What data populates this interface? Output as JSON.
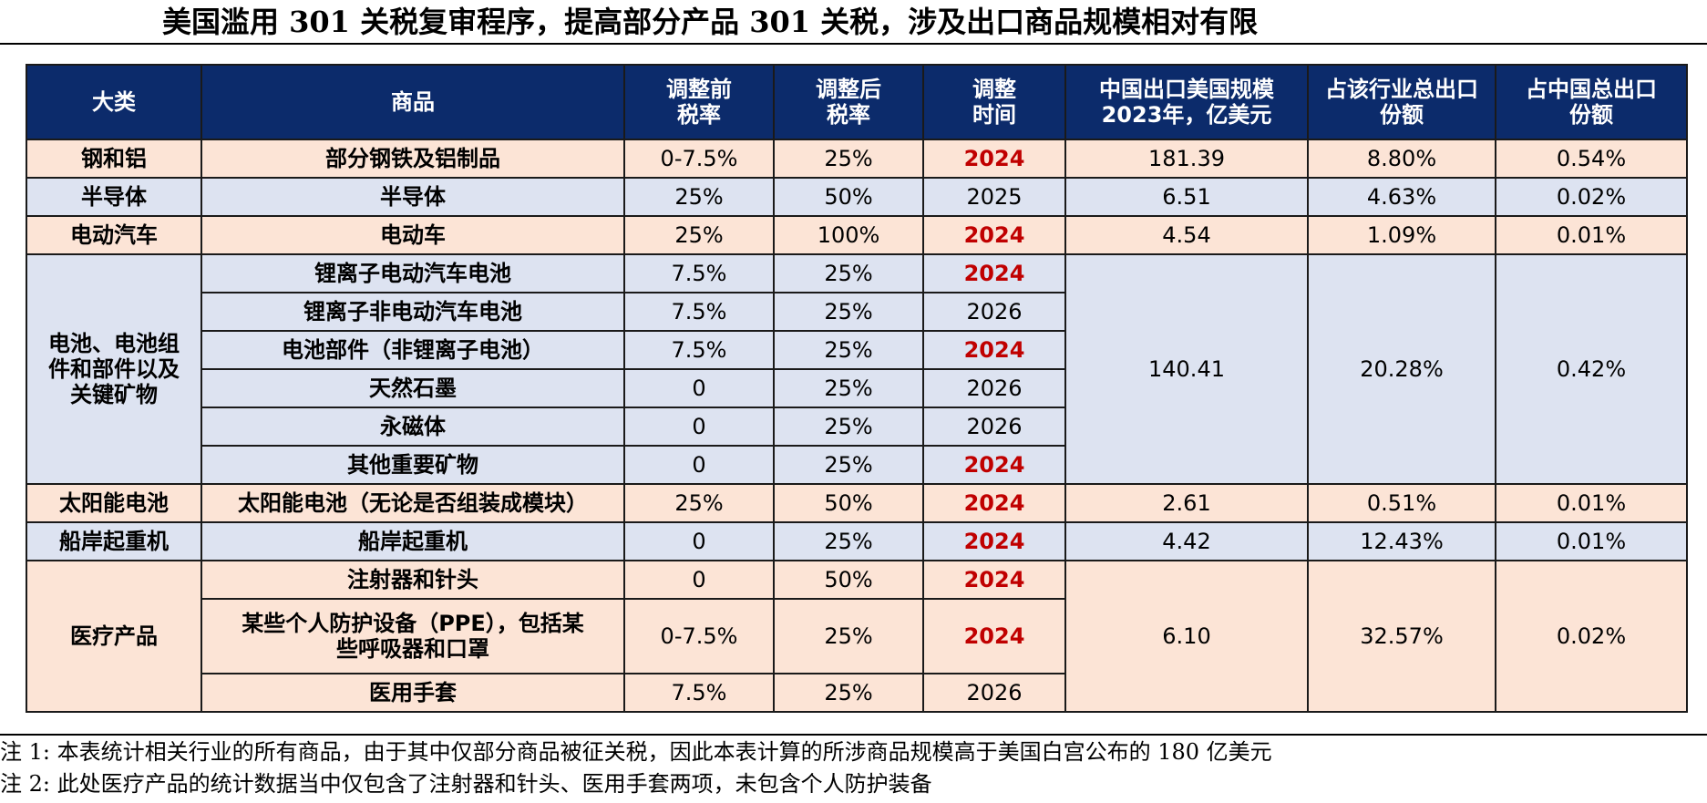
{
  "title": "美国滥用 301 关税复审程序，提高部分产品 301 关税，涉及出口商品规模相对有限",
  "headers": [
    [
      "大类"
    ],
    [
      "商品"
    ],
    [
      "调整前",
      "税率"
    ],
    [
      "调整后",
      "税率"
    ],
    [
      "调整",
      "时间"
    ],
    [
      "中国出口美国规模",
      "2023年，亿美元"
    ],
    [
      "占该行业总出口",
      "份额"
    ],
    [
      "占中国总出口",
      "份额"
    ]
  ],
  "groups": [
    {
      "category": [
        "钢和铝"
      ],
      "export": "181.39",
      "industry_share": "8.80%",
      "china_share": "0.54%",
      "color": "peach",
      "items": [
        {
          "product": [
            "部分钢铁及铝制品"
          ],
          "before": "0-7.5%",
          "after": "25%",
          "year": "2024",
          "highlight": true
        }
      ]
    },
    {
      "category": [
        "半导体"
      ],
      "export": "6.51",
      "industry_share": "4.63%",
      "china_share": "0.02%",
      "color": "blue",
      "items": [
        {
          "product": [
            "半导体"
          ],
          "before": "25%",
          "after": "50%",
          "year": "2025",
          "highlight": false
        }
      ]
    },
    {
      "category": [
        "电动汽车"
      ],
      "export": "4.54",
      "industry_share": "1.09%",
      "china_share": "0.01%",
      "color": "peach",
      "items": [
        {
          "product": [
            "电动车"
          ],
          "before": "25%",
          "after": "100%",
          "year": "2024",
          "highlight": true
        }
      ]
    },
    {
      "category": [
        "电池、电池组",
        "件和部件以及",
        "关键矿物"
      ],
      "export": "140.41",
      "industry_share": "20.28%",
      "china_share": "0.42%",
      "color": "blue",
      "items": [
        {
          "product": [
            "锂离子电动汽车电池"
          ],
          "before": "7.5%",
          "after": "25%",
          "year": "2024",
          "highlight": true
        },
        {
          "product": [
            "锂离子非电动汽车电池"
          ],
          "before": "7.5%",
          "after": "25%",
          "year": "2026",
          "highlight": false
        },
        {
          "product": [
            "电池部件（非锂离子电池）"
          ],
          "before": "7.5%",
          "after": "25%",
          "year": "2024",
          "highlight": true
        },
        {
          "product": [
            "天然石墨"
          ],
          "before": "0",
          "after": "25%",
          "year": "2026",
          "highlight": false
        },
        {
          "product": [
            "永磁体"
          ],
          "before": "0",
          "after": "25%",
          "year": "2026",
          "highlight": false
        },
        {
          "product": [
            "其他重要矿物"
          ],
          "before": "0",
          "after": "25%",
          "year": "2024",
          "highlight": true
        }
      ]
    },
    {
      "category": [
        "太阳能电池"
      ],
      "export": "2.61",
      "industry_share": "0.51%",
      "china_share": "0.01%",
      "color": "peach",
      "items": [
        {
          "product": [
            "太阳能电池（无论是否组装成模块）"
          ],
          "before": "25%",
          "after": "50%",
          "year": "2024",
          "highlight": true
        }
      ]
    },
    {
      "category": [
        "船岸起重机"
      ],
      "export": "4.42",
      "industry_share": "12.43%",
      "china_share": "0.01%",
      "color": "blue",
      "items": [
        {
          "product": [
            "船岸起重机"
          ],
          "before": "0",
          "after": "25%",
          "year": "2024",
          "highlight": true
        }
      ]
    },
    {
      "category": [
        "医疗产品"
      ],
      "export": "6.10",
      "industry_share": "32.57%",
      "china_share": "0.02%",
      "color": "peach",
      "items": [
        {
          "product": [
            "注射器和针头"
          ],
          "before": "0",
          "after": "50%",
          "year": "2024",
          "highlight": true
        },
        {
          "product": [
            "某些个人防护设备（PPE），包括某",
            "些呼吸器和口罩"
          ],
          "before": "0-7.5%",
          "after": "25%",
          "year": "2024",
          "highlight": true
        },
        {
          "product": [
            "医用手套"
          ],
          "before": "7.5%",
          "after": "25%",
          "year": "2026",
          "highlight": false
        }
      ]
    }
  ],
  "notes": [
    "注 1:  本表统计相关行业的所有商品，由于其中仅部分商品被征关税，因此本表计算的所涉商品规模高于美国白宫公布的 180 亿美元",
    "注 2:  此处医疗产品的统计数据当中仅包含了注射器和针头、医用手套两项，未包含个人防护装备"
  ]
}
